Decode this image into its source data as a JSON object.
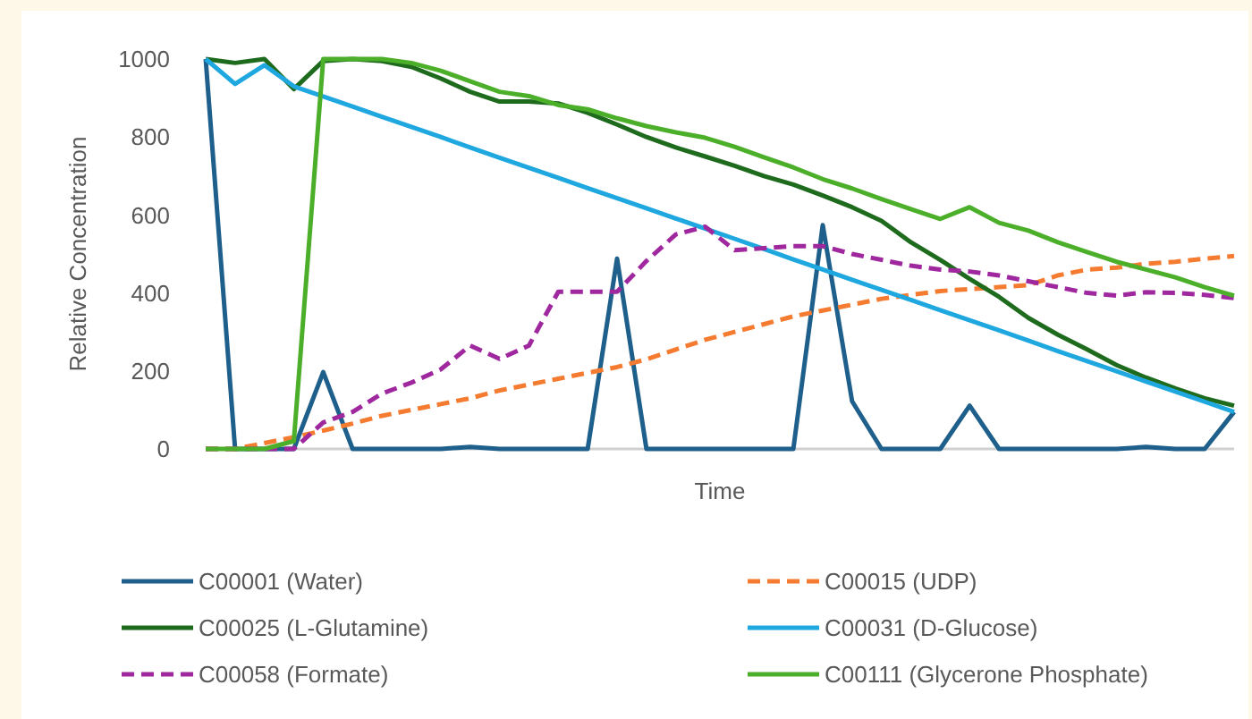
{
  "chart_data": {
    "type": "line",
    "xlabel": "Time",
    "ylabel": "Relative Concentration",
    "categories": [
      null,
      null,
      null,
      null,
      null,
      null,
      null,
      null,
      null,
      null,
      null,
      null,
      null,
      null,
      null,
      null,
      null,
      null,
      null,
      null,
      null,
      null,
      null,
      null,
      null,
      null,
      null,
      null,
      null,
      null,
      null,
      null,
      null,
      null,
      null,
      null
    ],
    "ylim": [
      0,
      1000
    ],
    "yticks": [
      0,
      200,
      400,
      600,
      800,
      1000
    ],
    "grid": false,
    "legend": "bottom",
    "marker": "none",
    "series": [
      {
        "name": "C00001 (Water)",
        "color": "#1f5f8b",
        "line_style": "solid",
        "values": [
          1000,
          0,
          0,
          0,
          197,
          0,
          0,
          0,
          0,
          5,
          0,
          0,
          0,
          0,
          488,
          0,
          0,
          0,
          0,
          0,
          0,
          574,
          122,
          0,
          0,
          0,
          111,
          0,
          0,
          0,
          0,
          0,
          5,
          0,
          0,
          95
        ]
      },
      {
        "name": "C00015 (UDP)",
        "color": "#f47b30",
        "line_style": "dashed",
        "values": [
          0,
          0,
          15,
          30,
          47,
          65,
          85,
          100,
          115,
          130,
          150,
          165,
          180,
          195,
          210,
          230,
          255,
          280,
          300,
          320,
          340,
          355,
          370,
          385,
          395,
          405,
          410,
          415,
          420,
          445,
          460,
          465,
          475,
          480,
          488,
          495
        ]
      },
      {
        "name": "C00025 (L-Glutamine)",
        "color": "#1e6b1e",
        "line_style": "solid",
        "values": [
          1000,
          990,
          1000,
          923,
          995,
          1000,
          995,
          980,
          950,
          916,
          891,
          891,
          886,
          862,
          832,
          800,
          773,
          750,
          726,
          700,
          678,
          650,
          620,
          585,
          530,
          485,
          436,
          390,
          336,
          293,
          255,
          215,
          183,
          155,
          130,
          111
        ]
      },
      {
        "name": "C00031 (D-Glucose)",
        "color": "#1fa7e0",
        "line_style": "solid",
        "values": [
          1000,
          936,
          984,
          930,
          904,
          878,
          852,
          826,
          800,
          773,
          747,
          721,
          695,
          669,
          643,
          617,
          591,
          565,
          539,
          513,
          486,
          460,
          434,
          408,
          382,
          356,
          330,
          304,
          278,
          251,
          225,
          199,
          173,
          147,
          121,
          95
        ]
      },
      {
        "name": "C00058 (Formate)",
        "color": "#a0289f",
        "line_style": "dashed",
        "values": [
          0,
          0,
          0,
          0,
          68,
          95,
          142,
          170,
          204,
          265,
          231,
          265,
          403,
          403,
          403,
          482,
          550,
          570,
          510,
          515,
          520,
          520,
          500,
          485,
          470,
          460,
          455,
          445,
          430,
          415,
          400,
          393,
          402,
          400,
          395,
          387
        ]
      },
      {
        "name": "C00111 (Glycerone Phosphate)",
        "color": "#4caf2a",
        "line_style": "solid",
        "values": [
          0,
          0,
          0,
          20,
          1000,
          1000,
          1000,
          990,
          970,
          943,
          916,
          905,
          882,
          871,
          848,
          828,
          812,
          798,
          775,
          748,
          722,
          692,
          668,
          641,
          615,
          590,
          620,
          580,
          560,
          530,
          505,
          480,
          460,
          440,
          415,
          393
        ]
      }
    ]
  }
}
